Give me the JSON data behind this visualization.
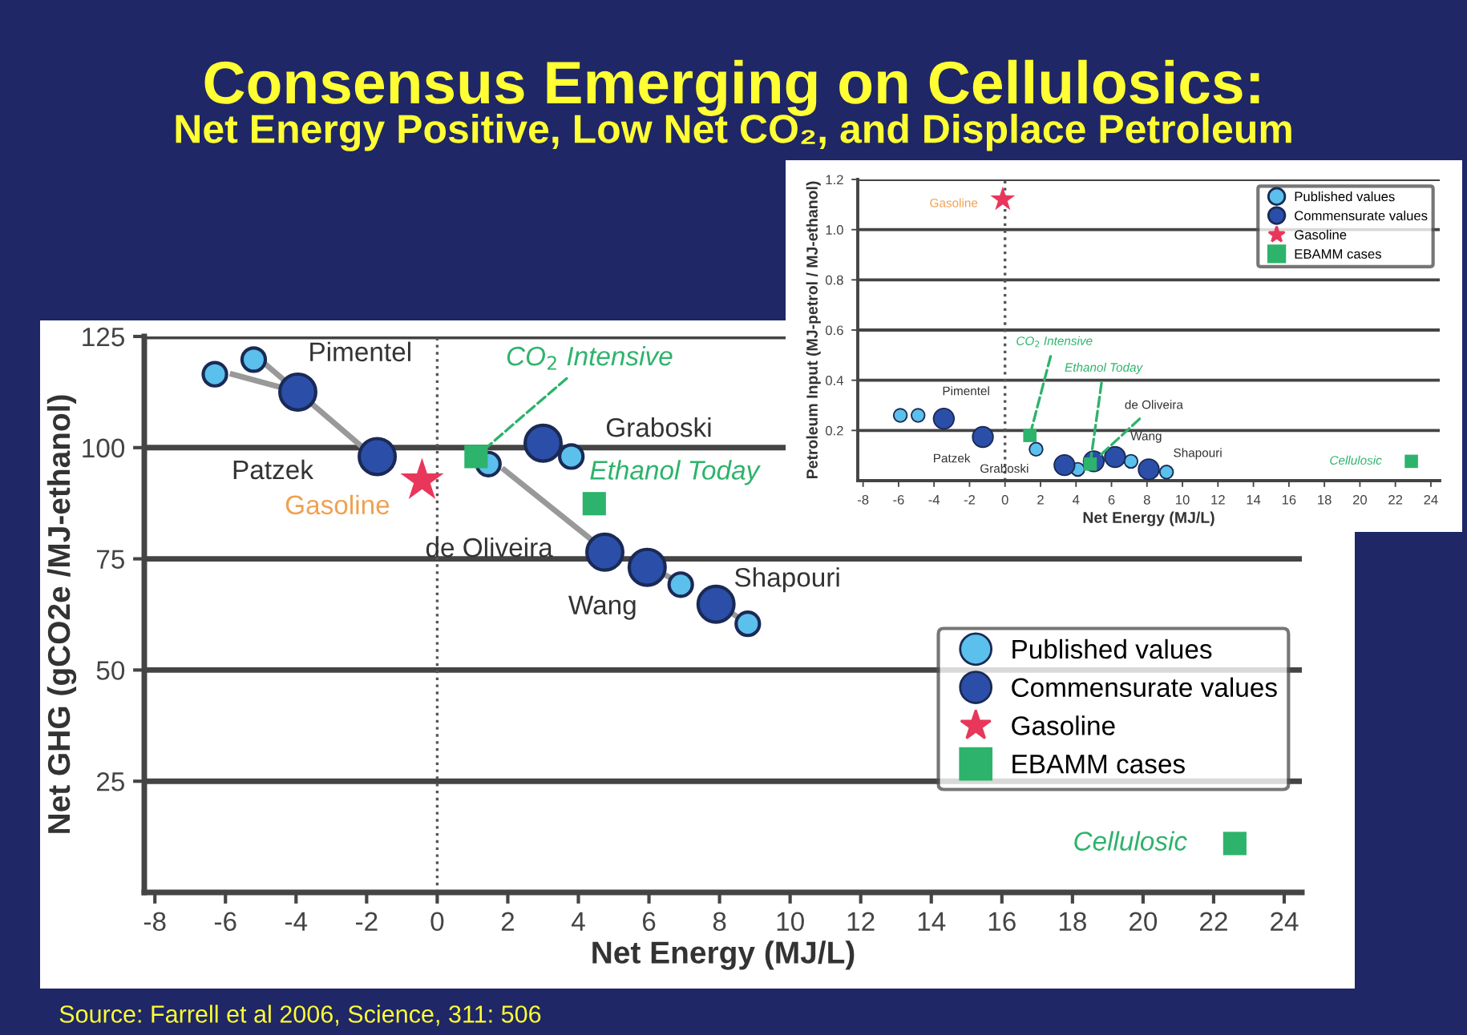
{
  "chart_data": [
    {
      "type": "scatter",
      "title": "Consensus Emerging on Cellulosics:",
      "subtitle": "Net Energy Positive, Low Net CO₂, and Displace Petroleum",
      "xlabel": "Net Energy (MJ/L)",
      "ylabel": "Net GHG (gCO2e /MJ-ethanol)",
      "xlim": [
        -8.3,
        24.5
      ],
      "ylim": [
        0,
        125
      ],
      "xticks": [
        -8,
        -6,
        -4,
        -2,
        0,
        2,
        4,
        6,
        8,
        10,
        12,
        14,
        16,
        18,
        20,
        22,
        24
      ],
      "yticks": [
        25,
        50,
        75,
        100,
        125
      ],
      "grid": "y",
      "legend": "right",
      "ref_lines": [
        {
          "axis": "x",
          "value": 0,
          "line_style": "dotted",
          "color": "#555555"
        }
      ],
      "series": [
        {
          "name": "Published values",
          "color": "#5bc0eb",
          "marker": "circle",
          "x": [
            -6.3,
            -5.2,
            1.45,
            3.8,
            6.9,
            8.8
          ],
          "values": [
            116.5,
            119.8,
            96.3,
            98,
            69.2,
            60.4
          ]
        },
        {
          "name": "Commensurate values",
          "color": "#2b4fa8",
          "marker": "circle",
          "x": [
            -3.95,
            -1.7,
            3.0,
            4.75,
            5.95,
            7.9
          ],
          "values": [
            112.5,
            98,
            101,
            76.5,
            73.1,
            64.8
          ]
        },
        {
          "name": "Gasoline",
          "color": "#e8375a",
          "marker": "star",
          "x": [
            -0.43
          ],
          "values": [
            92.6
          ]
        },
        {
          "name": "EBAMM cases",
          "color": "#2db36b",
          "marker": "square",
          "x": [
            1.1,
            4.45,
            22.6
          ],
          "values": [
            98,
            87.4,
            11
          ]
        },
        {
          "type": "line",
          "color": "#999999",
          "marker": "none",
          "x": [
            -5.8,
            -4.4,
            null,
            -4.9,
            -2.1,
            null,
            1.9,
            4.5,
            null,
            6.8,
            6.3,
            null,
            8.7,
            8.2
          ],
          "values": [
            116.5,
            113.5,
            null,
            119,
            100,
            null,
            95,
            78.5,
            null,
            70,
            72,
            null,
            61,
            63.5
          ]
        }
      ],
      "annotations": [
        {
          "text": "Pimentel",
          "x": -3.95,
          "y": 112.5
        },
        {
          "text": "Patzek",
          "x": -1.7,
          "y": 98
        },
        {
          "text": "Gasoline",
          "x": -0.43,
          "y": 92.6
        },
        {
          "text": "Graboski",
          "x": 3.0,
          "y": 101
        },
        {
          "text": "de Oliveira",
          "x": 4.75,
          "y": 76.5
        },
        {
          "text": "Wang",
          "x": 5.95,
          "y": 73.1
        },
        {
          "text": "Shapouri",
          "x": 7.9,
          "y": 64.8
        },
        {
          "text": "CO$_{2}$ Intensive",
          "x": 1.1,
          "y": 98
        },
        {
          "text": "Ethanol Today",
          "x": 4.45,
          "y": 87.4
        },
        {
          "text": "Cellulosic",
          "x": 22.6,
          "y": 11
        },
        "Source: Farrell et al 2006, Science, 311: 506"
      ]
    },
    {
      "type": "scatter",
      "xlabel": "Net Energy (MJ/L)",
      "ylabel": "Petroleum Input (MJ-petrol / MJ-ethanol)",
      "xlim": [
        -8.3,
        24.5
      ],
      "ylim": [
        0,
        1.2
      ],
      "xticks": [
        -8,
        -6,
        -4,
        -2,
        0,
        2,
        4,
        6,
        8,
        10,
        12,
        14,
        16,
        18,
        20,
        22,
        24
      ],
      "yticks": [
        {
          "value": 0.2,
          "label": "0.2"
        },
        {
          "value": 0.4,
          "label": "0.4"
        },
        {
          "value": 0.6,
          "label": "0.6"
        },
        {
          "value": 0.8,
          "label": "0.8"
        },
        {
          "value": 1.0,
          "label": "1.0"
        },
        {
          "value": 1.2,
          "label": "1.2"
        }
      ],
      "grid": "y",
      "legend": "top right",
      "ref_lines": [
        {
          "axis": "x",
          "value": 0,
          "line_style": "dotted",
          "color": "#555555"
        }
      ],
      "series": [
        {
          "name": "Published values",
          "color": "#5bc0eb",
          "marker": "circle",
          "x": [
            -5.9,
            -4.9,
            1.75,
            4.1,
            7.1,
            9.1
          ],
          "values": [
            0.26,
            0.26,
            0.125,
            0.045,
            0.077,
            0.034
          ]
        },
        {
          "name": "Commensurate values",
          "color": "#2b4fa8",
          "marker": "circle",
          "x": [
            -3.45,
            -1.25,
            3.35,
            5.0,
            6.2,
            8.1
          ],
          "values": [
            0.247,
            0.174,
            0.062,
            0.077,
            0.094,
            0.045
          ]
        },
        {
          "name": "Gasoline",
          "color": "#e8375a",
          "marker": "star",
          "x": [
            -0.13
          ],
          "values": [
            1.12
          ]
        },
        {
          "name": "EBAMM cases",
          "color": "#2db36b",
          "marker": "square",
          "x": [
            1.4,
            4.8,
            22.9
          ],
          "values": [
            0.18,
            0.066,
            0.077
          ]
        }
      ],
      "annotations": [
        {
          "text": "Gasoline",
          "x": -0.13,
          "y": 1.12
        },
        {
          "text": "Pimentel",
          "x": -3.45,
          "y": 0.247
        },
        {
          "text": "Patzek",
          "x": -1.25,
          "y": 0.174
        },
        {
          "text": "Graboski",
          "x": 3.35,
          "y": 0.062
        },
        {
          "text": "CO$_{2}$ Intensive",
          "x": 1.4,
          "y": 0.18
        },
        {
          "text": "Ethanol Today",
          "x": 4.8,
          "y": 0.066
        },
        {
          "text": "de Oliveira",
          "x": 5.0,
          "y": 0.077
        },
        {
          "text": "Wang",
          "x": 6.2,
          "y": 0.094
        },
        {
          "text": "Shapouri",
          "x": 8.1,
          "y": 0.045
        },
        {
          "text": "Cellulosic",
          "x": 22.9,
          "y": 0.077
        }
      ]
    }
  ]
}
